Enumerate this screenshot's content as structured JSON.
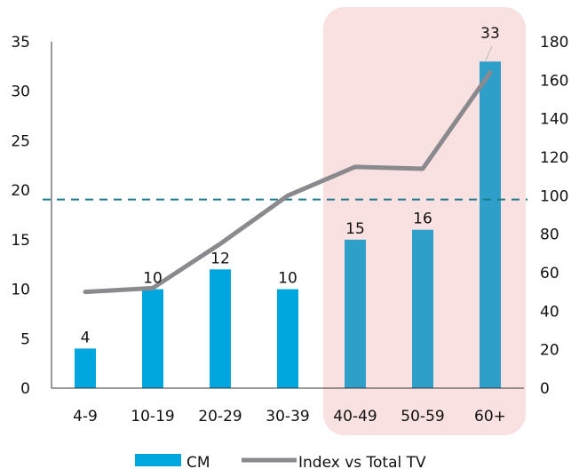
{
  "chart_data": {
    "type": "bar",
    "categories": [
      "4-9",
      "10-19",
      "20-29",
      "30-39",
      "40-49",
      "50-59",
      "60+"
    ],
    "series": [
      {
        "name": "CM",
        "type": "bar",
        "axis": "left",
        "values": [
          4,
          10,
          12,
          10,
          15,
          16,
          33
        ],
        "data_labels": [
          "4",
          "10",
          "12",
          "10",
          "15",
          "16",
          "33"
        ],
        "color": "#00a7de",
        "highlight_color": "#2e9fc9"
      },
      {
        "name": "Index vs Total TV",
        "type": "line",
        "axis": "right",
        "values": [
          50,
          52,
          75,
          100,
          115,
          114,
          164
        ],
        "color": "#8a8a8e"
      }
    ],
    "y_left": {
      "ylim": [
        0,
        35
      ],
      "ticks": [
        "0",
        "5",
        "10",
        "15",
        "20",
        "25",
        "30",
        "35"
      ]
    },
    "y_right": {
      "ylim": [
        0,
        180
      ],
      "ticks": [
        "0",
        "20",
        "40",
        "60",
        "80",
        "100",
        "120",
        "140",
        "160",
        "180"
      ]
    },
    "reference_line": {
      "axis": "right",
      "value": 98,
      "style": "dashed",
      "color": "#1b7a8c"
    },
    "highlight_region": {
      "categories": [
        "40-49",
        "50-59",
        "60+"
      ],
      "color": "#f9e1e1"
    },
    "legend": {
      "position": "bottom"
    },
    "grid": false
  }
}
